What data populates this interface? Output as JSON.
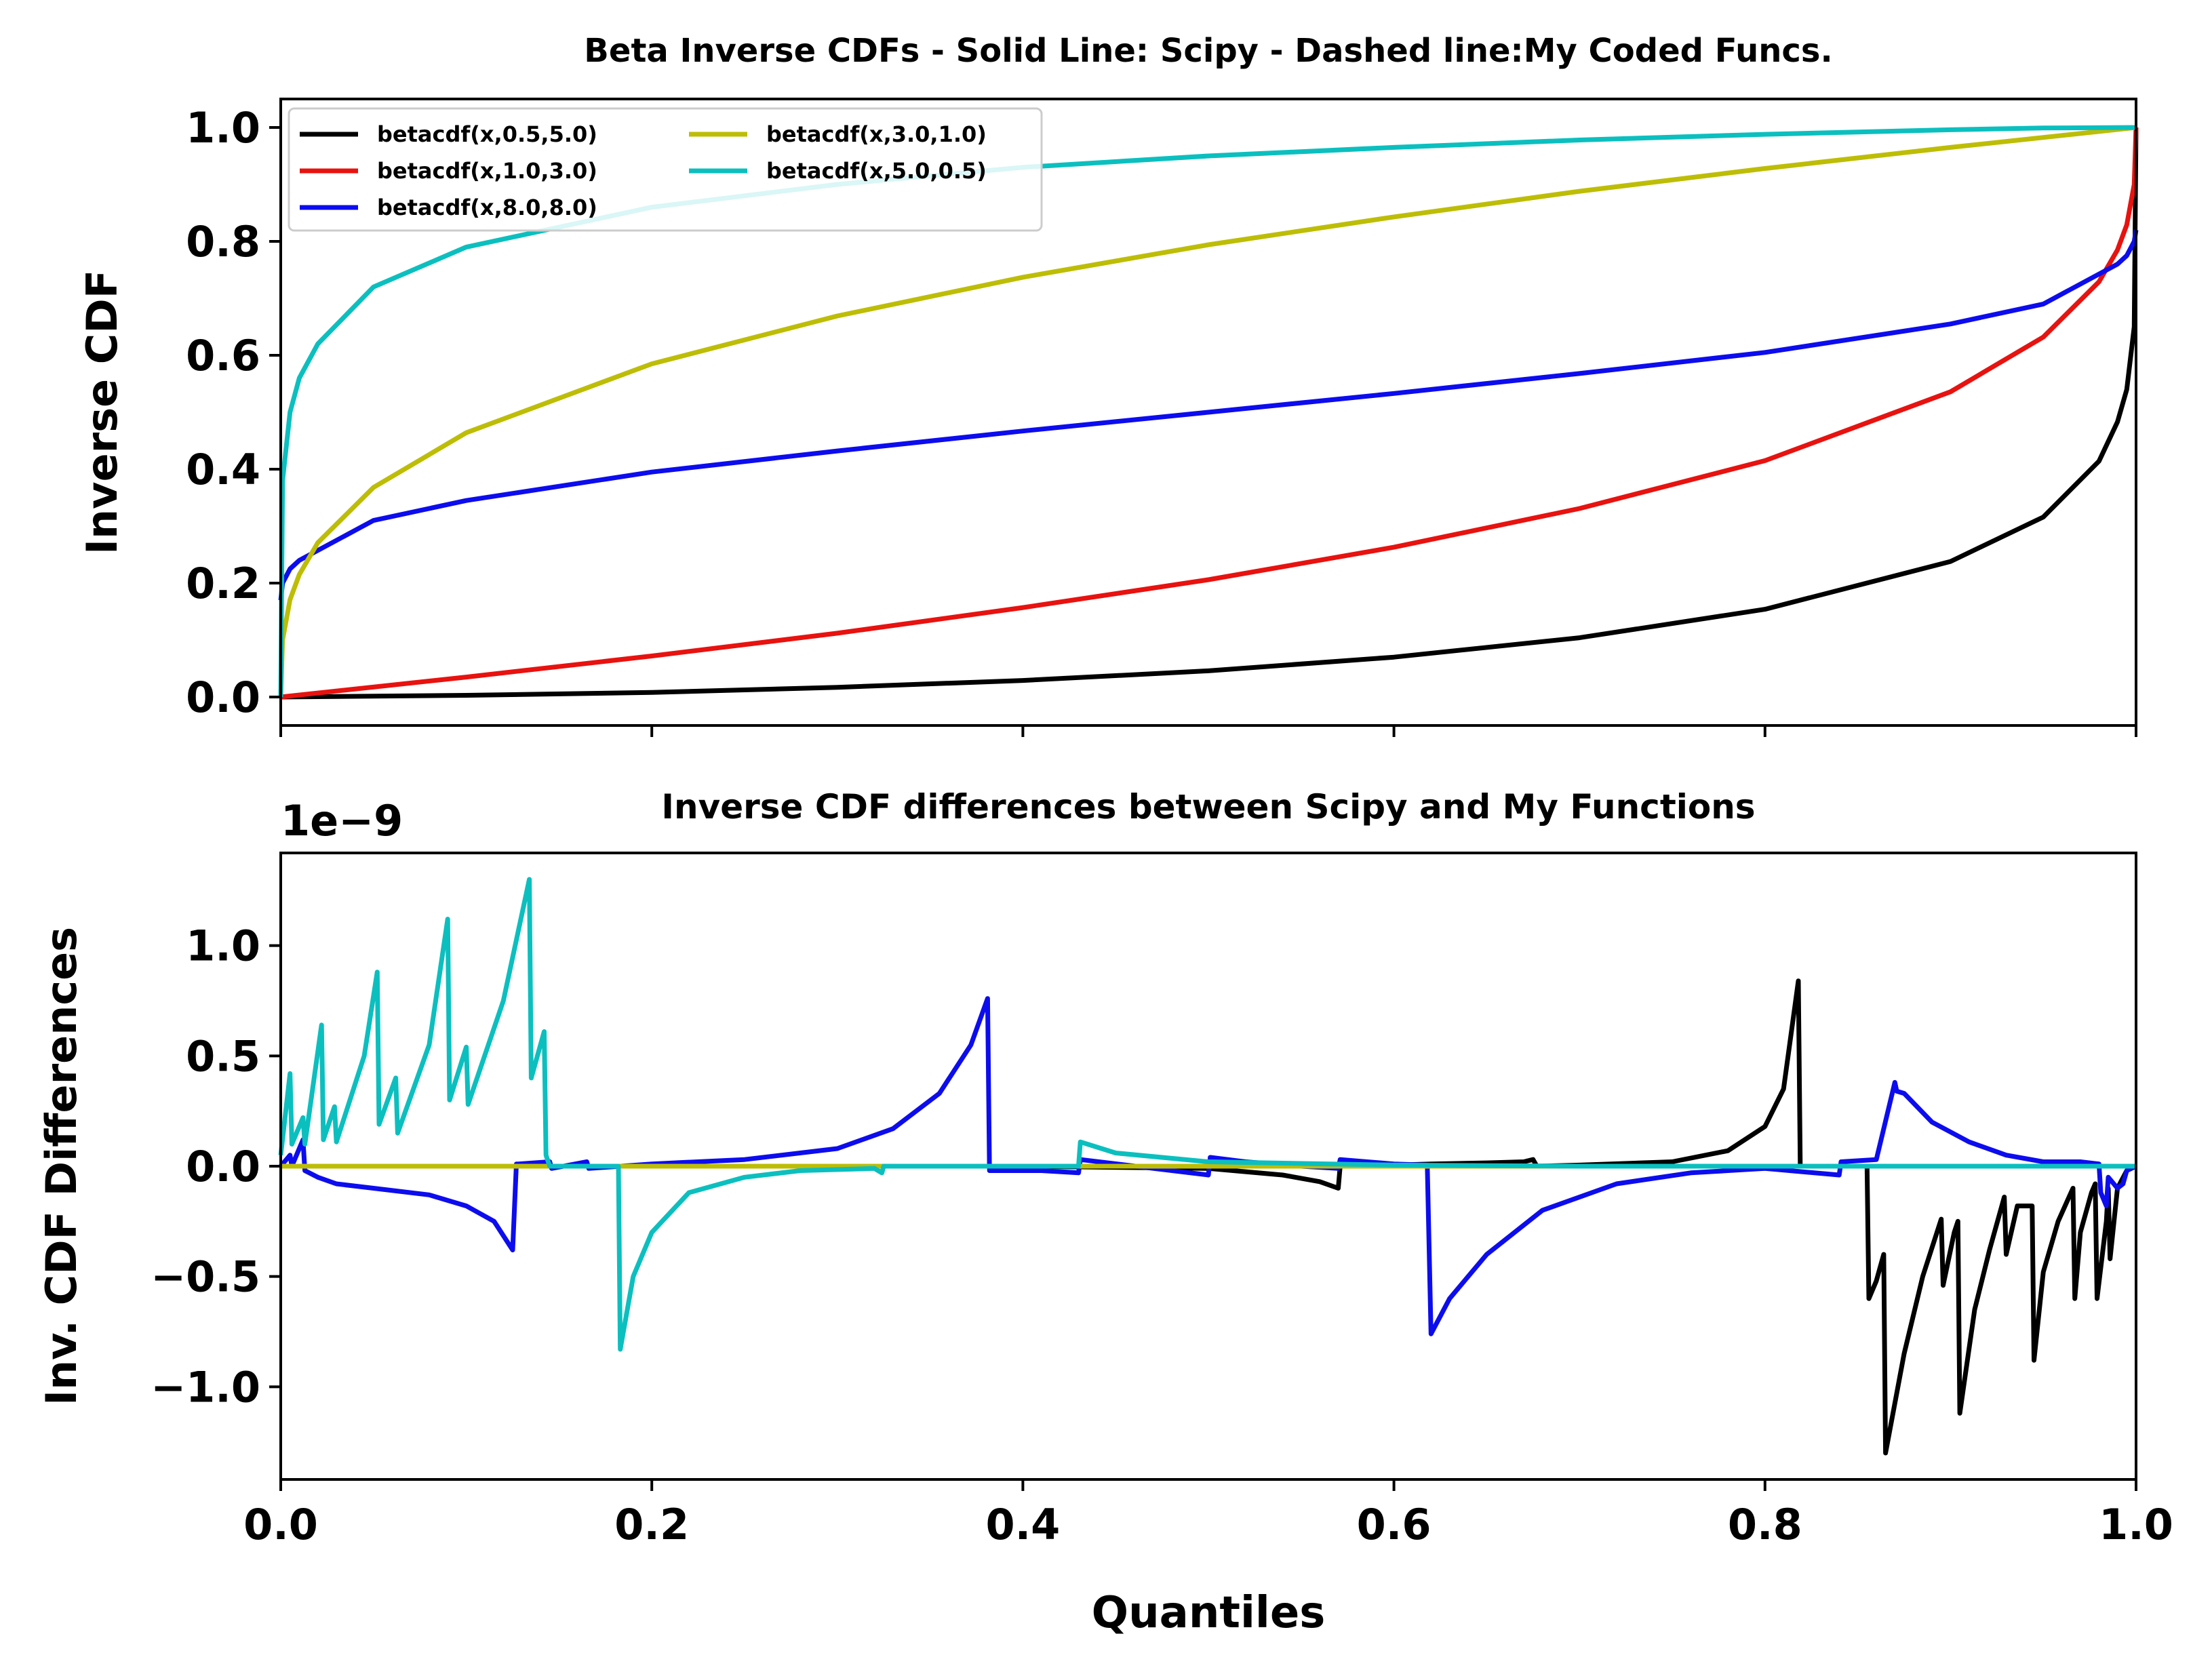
{
  "chart_data": [
    {
      "type": "line",
      "title": "Beta Inverse CDFs - Solid Line: Scipy - Dashed line:My Coded Funcs.",
      "xlabel": "",
      "ylabel": "Inverse CDF",
      "xlim": [
        0.0,
        1.0
      ],
      "ylim": [
        -0.05,
        1.05
      ],
      "yticks": [
        0.0,
        0.2,
        0.4,
        0.6,
        0.8,
        1.0
      ],
      "ytick_labels": [
        "0.0",
        "0.2",
        "0.4",
        "0.6",
        "0.8",
        "1.0"
      ],
      "xticks": [
        0.0,
        0.2,
        0.4,
        0.6,
        0.8,
        1.0
      ],
      "xtick_labels_visible": false,
      "grid": false,
      "legend_placement": "top-left",
      "legend_columns": 2,
      "series": [
        {
          "name": "betacdf(x,0.5,5.0)",
          "color": "#000000",
          "x": [
            0,
            0.1,
            0.2,
            0.3,
            0.4,
            0.5,
            0.6,
            0.7,
            0.8,
            0.9,
            0.95,
            0.98,
            0.99,
            0.995,
            0.999,
            1.0
          ],
          "y": [
            0,
            0.003,
            0.008,
            0.017,
            0.029,
            0.046,
            0.07,
            0.104,
            0.154,
            0.238,
            0.316,
            0.414,
            0.483,
            0.54,
            0.65,
            1.0
          ]
        },
        {
          "name": "betacdf(x,1.0,3.0)",
          "color": "#e8120f",
          "x": [
            0,
            0.1,
            0.2,
            0.3,
            0.4,
            0.5,
            0.6,
            0.7,
            0.8,
            0.9,
            0.95,
            0.98,
            0.99,
            0.995,
            0.999,
            1.0
          ],
          "y": [
            0,
            0.035,
            0.072,
            0.112,
            0.157,
            0.206,
            0.263,
            0.331,
            0.415,
            0.536,
            0.632,
            0.729,
            0.785,
            0.829,
            0.9,
            1.0
          ]
        },
        {
          "name": "betacdf(x,8.0,8.0)",
          "color": "#0c0cef",
          "x": [
            0,
            0.001,
            0.005,
            0.01,
            0.05,
            0.1,
            0.2,
            0.3,
            0.4,
            0.5,
            0.6,
            0.7,
            0.8,
            0.9,
            0.95,
            0.99,
            0.995,
            0.999,
            1.0
          ],
          "y": [
            0.17,
            0.2,
            0.225,
            0.24,
            0.31,
            0.345,
            0.395,
            0.432,
            0.467,
            0.5,
            0.533,
            0.568,
            0.605,
            0.655,
            0.69,
            0.76,
            0.775,
            0.8,
            0.82
          ]
        },
        {
          "name": "betacdf(x,3.0,1.0)",
          "color": "#bdbd06",
          "x": [
            0,
            0.001,
            0.005,
            0.01,
            0.02,
            0.05,
            0.1,
            0.2,
            0.3,
            0.4,
            0.5,
            0.6,
            0.7,
            0.8,
            0.9,
            1.0
          ],
          "y": [
            0,
            0.1,
            0.171,
            0.215,
            0.271,
            0.368,
            0.464,
            0.585,
            0.669,
            0.737,
            0.794,
            0.843,
            0.888,
            0.928,
            0.965,
            1.0
          ]
        },
        {
          "name": "betacdf(x,5.0,0.5)",
          "color": "#0cbfbf",
          "x": [
            0,
            0.001,
            0.005,
            0.01,
            0.02,
            0.05,
            0.1,
            0.2,
            0.3,
            0.4,
            0.5,
            0.6,
            0.7,
            0.8,
            0.9,
            0.95,
            1.0
          ],
          "y": [
            0,
            0.38,
            0.5,
            0.56,
            0.62,
            0.72,
            0.79,
            0.86,
            0.9,
            0.93,
            0.95,
            0.965,
            0.978,
            0.988,
            0.996,
            0.999,
            1.0
          ]
        }
      ]
    },
    {
      "type": "line",
      "title": "Inverse CDF differences between Scipy and My Functions",
      "xlabel": "Quantiles",
      "ylabel": "Inv. CDF Differences",
      "offset_text": "1e−9",
      "xlim": [
        0.0,
        1.0
      ],
      "ylim": [
        -1.42,
        1.42
      ],
      "yticks": [
        -1.0,
        -0.5,
        0.0,
        0.5,
        1.0
      ],
      "ytick_labels": [
        "−1.0",
        "−0.5",
        "0.0",
        "0.5",
        "1.0"
      ],
      "xticks": [
        0.0,
        0.2,
        0.4,
        0.6,
        0.8,
        1.0
      ],
      "xtick_labels": [
        "0.0",
        "0.2",
        "0.4",
        "0.6",
        "0.8",
        "1.0"
      ],
      "grid": false,
      "series": [
        {
          "color": "#000000",
          "x": [
            0,
            0.2,
            0.4,
            0.5,
            0.52,
            0.54,
            0.56,
            0.57,
            0.571,
            0.6,
            0.62,
            0.65,
            0.67,
            0.675,
            0.677,
            0.7,
            0.75,
            0.78,
            0.8,
            0.81,
            0.818,
            0.819,
            0.855,
            0.856,
            0.86,
            0.864,
            0.865,
            0.875,
            0.885,
            0.895,
            0.896,
            0.902,
            0.904,
            0.905,
            0.913,
            0.921,
            0.929,
            0.93,
            0.936,
            0.944,
            0.945,
            0.95,
            0.958,
            0.966,
            0.967,
            0.97,
            0.976,
            0.978,
            0.979,
            0.984,
            0.985,
            0.986,
            0.99,
            0.995,
            1.0
          ],
          "y": [
            0,
            0,
            0,
            -0.01,
            -0.025,
            -0.04,
            -0.07,
            -0.1,
            0,
            0.005,
            0.01,
            0.015,
            0.02,
            0.03,
            0,
            0.005,
            0.02,
            0.07,
            0.18,
            0.35,
            0.84,
            0,
            0,
            -0.6,
            -0.52,
            -0.4,
            -1.3,
            -0.85,
            -0.5,
            -0.24,
            -0.54,
            -0.3,
            -0.25,
            -1.12,
            -0.65,
            -0.38,
            -0.14,
            -0.4,
            -0.18,
            -0.18,
            -0.88,
            -0.48,
            -0.25,
            -0.1,
            -0.6,
            -0.3,
            -0.12,
            -0.08,
            -0.6,
            -0.25,
            -0.1,
            -0.42,
            -0.1,
            -0.02,
            0
          ]
        },
        {
          "color": "#0c0cef",
          "x": [
            0,
            0.005,
            0.006,
            0.012,
            0.013,
            0.02,
            0.03,
            0.05,
            0.08,
            0.1,
            0.115,
            0.125,
            0.127,
            0.128,
            0.145,
            0.146,
            0.165,
            0.166,
            0.2,
            0.25,
            0.3,
            0.33,
            0.355,
            0.372,
            0.381,
            0.382,
            0.41,
            0.43,
            0.431,
            0.5,
            0.501,
            0.52,
            0.55,
            0.57,
            0.571,
            0.6,
            0.618,
            0.62,
            0.63,
            0.65,
            0.68,
            0.72,
            0.76,
            0.8,
            0.84,
            0.841,
            0.86,
            0.87,
            0.871,
            0.875,
            0.89,
            0.91,
            0.93,
            0.95,
            0.97,
            0.98,
            0.981,
            0.984,
            0.985,
            0.99,
            0.993,
            0.995,
            0.997,
            1.0
          ],
          "y": [
            0,
            0.05,
            0,
            0.12,
            -0.02,
            -0.05,
            -0.08,
            -0.1,
            -0.13,
            -0.18,
            -0.25,
            -0.38,
            0.01,
            0.01,
            0.02,
            -0.01,
            0.02,
            -0.01,
            0.01,
            0.03,
            0.08,
            0.17,
            0.33,
            0.55,
            0.76,
            -0.02,
            -0.02,
            -0.03,
            0.03,
            -0.04,
            0.04,
            0.02,
            0,
            -0.01,
            0.03,
            0.01,
            0.005,
            -0.76,
            -0.6,
            -0.4,
            -0.2,
            -0.08,
            -0.03,
            -0.01,
            -0.04,
            0.02,
            0.03,
            0.38,
            0.34,
            0.33,
            0.2,
            0.11,
            0.05,
            0.02,
            0.02,
            0.01,
            -0.12,
            -0.18,
            -0.05,
            -0.1,
            -0.08,
            -0.02,
            -0.01,
            0
          ]
        },
        {
          "color": "#bdbd06",
          "x": [
            0,
            0.1,
            0.2,
            0.3,
            0.4,
            0.5,
            0.6,
            0.7,
            0.8,
            0.9,
            1.0
          ],
          "y": [
            0,
            0,
            0,
            0,
            0,
            0,
            0,
            0,
            0,
            0,
            0
          ]
        },
        {
          "color": "#0cbfbf",
          "x": [
            0,
            0.005,
            0.006,
            0.012,
            0.013,
            0.022,
            0.023,
            0.029,
            0.03,
            0.045,
            0.052,
            0.053,
            0.062,
            0.063,
            0.08,
            0.09,
            0.091,
            0.1,
            0.101,
            0.12,
            0.134,
            0.135,
            0.142,
            0.143,
            0.145,
            0.146,
            0.182,
            0.183,
            0.19,
            0.2,
            0.22,
            0.25,
            0.28,
            0.32,
            0.324,
            0.325,
            0.4,
            0.43,
            0.431,
            0.45,
            0.5,
            0.6,
            0.7,
            0.8,
            0.9,
            1.0
          ],
          "y": [
            0.05,
            0.42,
            0.1,
            0.22,
            0.1,
            0.64,
            0.12,
            0.27,
            0.11,
            0.5,
            0.88,
            0.19,
            0.4,
            0.15,
            0.55,
            1.12,
            0.3,
            0.54,
            0.28,
            0.75,
            1.3,
            0.4,
            0.61,
            0.05,
            0,
            0,
            0,
            -0.83,
            -0.5,
            -0.3,
            -0.12,
            -0.05,
            -0.02,
            -0.01,
            -0.03,
            0,
            0,
            0,
            0.11,
            0.06,
            0.02,
            0.005,
            0,
            0,
            0,
            0
          ]
        }
      ]
    }
  ]
}
